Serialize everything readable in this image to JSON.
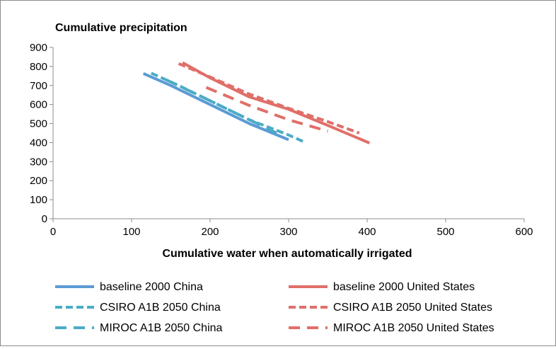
{
  "chart_data": {
    "type": "line",
    "title": "Cumulative precipitation",
    "xlabel": "Cumulative water when automatically irrigated",
    "ylabel": "",
    "xlim": [
      0,
      600
    ],
    "ylim": [
      0,
      900
    ],
    "x_ticks": [
      "0",
      "100",
      "200",
      "300",
      "400",
      "500",
      "600"
    ],
    "y_ticks": [
      "0",
      "100",
      "200",
      "300",
      "400",
      "500",
      "600",
      "700",
      "800",
      "900"
    ],
    "grid": false,
    "legend_position": "bottom",
    "series": [
      {
        "name": "baseline 2000 China",
        "color": "#5b9bd5",
        "dash": "solid",
        "x": [
          115,
          150,
          200,
          250,
          300
        ],
        "y": [
          763,
          700,
          600,
          500,
          415
        ]
      },
      {
        "name": "CSIRO A1B 2050 China",
        "color": "#4bacc6",
        "dash": "dash",
        "x": [
          125,
          160,
          200,
          250,
          300,
          320
        ],
        "y": [
          765,
          700,
          620,
          520,
          440,
          403
        ]
      },
      {
        "name": "MIROC A1B 2050 China",
        "color": "#4bacc6",
        "dash": "longdash",
        "x": [
          145,
          200,
          250,
          290
        ],
        "y": [
          728,
          620,
          520,
          440
        ]
      },
      {
        "name": "baseline 2000 United States",
        "color": "#e06f69",
        "dash": "solid",
        "x": [
          165,
          200,
          250,
          300,
          350,
          403
        ],
        "y": [
          820,
          740,
          640,
          575,
          490,
          398
        ]
      },
      {
        "name": "CSIRO A1B 2050 United States",
        "color": "#e06f69",
        "dash": "dash",
        "x": [
          160,
          200,
          250,
          300,
          350,
          390
        ],
        "y": [
          815,
          745,
          655,
          580,
          510,
          450
        ]
      },
      {
        "name": "MIROC A1B 2050 United States",
        "color": "#e06f69",
        "dash": "longdash",
        "x": [
          195,
          250,
          300,
          350
        ],
        "y": [
          690,
          595,
          520,
          460
        ]
      }
    ]
  }
}
